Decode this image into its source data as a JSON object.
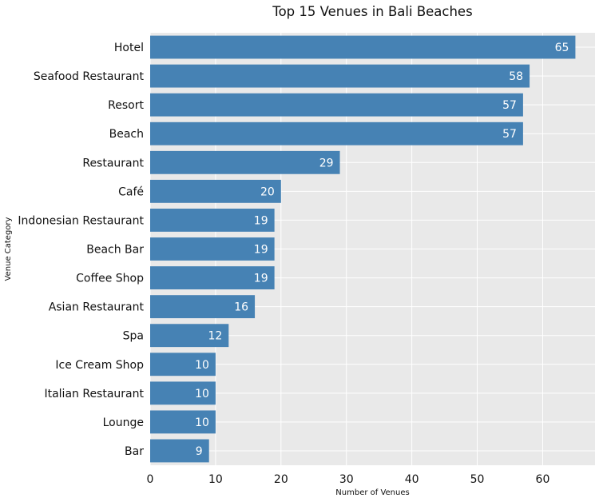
{
  "chart_data": {
    "type": "bar",
    "orientation": "horizontal",
    "title": "Top 15 Venues in Bali Beaches",
    "xlabel": "Number of Venues",
    "ylabel": "Venue Category",
    "categories": [
      "Hotel",
      "Seafood Restaurant",
      "Resort",
      "Beach",
      "Restaurant",
      "Café",
      "Indonesian Restaurant",
      "Beach Bar",
      "Coffee Shop",
      "Asian Restaurant",
      "Spa",
      "Ice Cream Shop",
      "Italian Restaurant",
      "Lounge",
      "Bar"
    ],
    "values": [
      65,
      58,
      57,
      57,
      29,
      20,
      19,
      19,
      19,
      16,
      12,
      10,
      10,
      10,
      9
    ],
    "xlim": [
      0,
      68
    ],
    "xticks": [
      0,
      10,
      20,
      30,
      40,
      50,
      60
    ],
    "grid": true,
    "bar_color": "#4682b4",
    "background_color": "#e9e9e9",
    "grid_color": "#ffffff",
    "value_label_color": "#ffffff"
  }
}
